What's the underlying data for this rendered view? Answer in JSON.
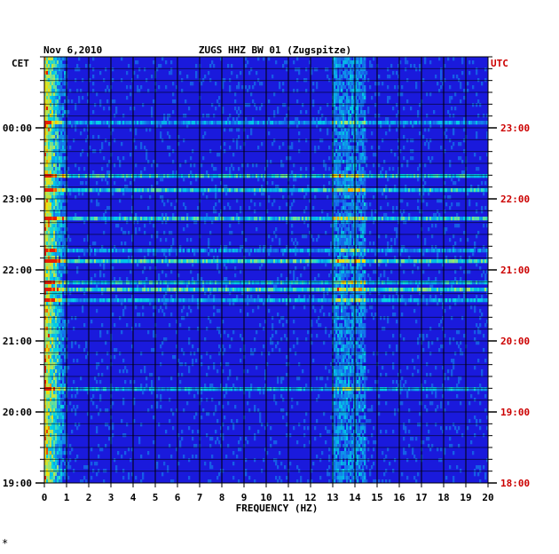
{
  "chart_data": {
    "type": "heatmap",
    "date": "Nov 6,2010",
    "title": "ZUGS HHZ BW 01 (Zugspitze)",
    "xlabel": "FREQUENCY (HZ)",
    "xlim": [
      0,
      20
    ],
    "x_ticks": [
      "0",
      "1",
      "2",
      "3",
      "4",
      "5",
      "6",
      "7",
      "8",
      "9",
      "10",
      "11",
      "12",
      "13",
      "14",
      "15",
      "16",
      "17",
      "18",
      "19",
      "20"
    ],
    "left_axis_label": "CET",
    "right_axis_label": "UTC",
    "left_ticks": [
      "00:00",
      "23:00",
      "22:00",
      "21:00",
      "20:00",
      "19:00"
    ],
    "right_ticks": [
      "23:00",
      "22:00",
      "21:00",
      "20:00",
      "19:00",
      "18:00"
    ],
    "footer_mark": "*",
    "grid": true,
    "colors": {
      "background": "#1a1adc",
      "grid": "#000000",
      "right_axis": "#cc0000",
      "text": "#000000"
    },
    "features": {
      "low_frequency_band_hz": [
        0,
        1
      ],
      "narrow_band_hz": [
        13.0,
        14.5
      ]
    }
  }
}
